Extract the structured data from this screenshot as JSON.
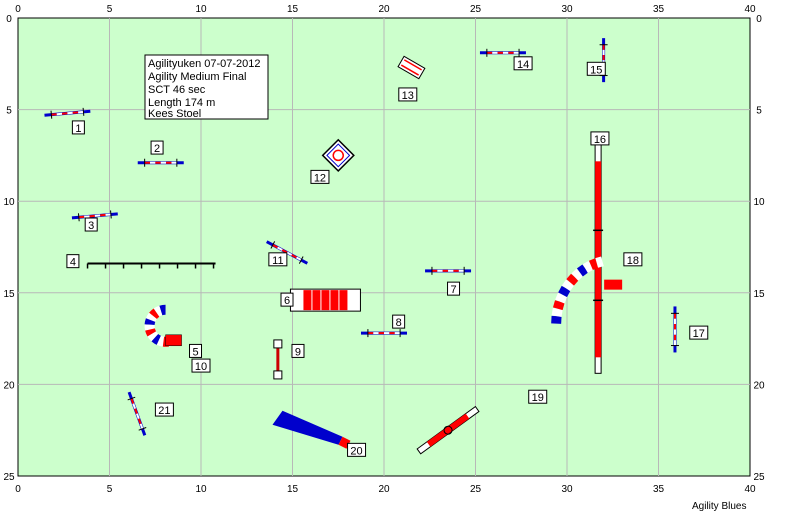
{
  "field": {
    "width_units": 40,
    "height_units": 25,
    "background": "#ccffcc",
    "grid_color": "#b8b8b8",
    "x_ticks": [
      "0",
      "5",
      "10",
      "15",
      "20",
      "25",
      "30",
      "35",
      "40"
    ],
    "y_ticks": [
      "0",
      "5",
      "10",
      "15",
      "20",
      "25"
    ]
  },
  "info": {
    "lines": [
      "Agilityuken 07-07-2012",
      "Agility Medium Final",
      "SCT 46 sec",
      "Length 174 m",
      "Kees Stoel"
    ]
  },
  "brand": "Agility Blues",
  "colors": {
    "red": "#ff0000",
    "blue": "#0000cc",
    "white": "#ffffff",
    "dark_red": "#cc0000"
  },
  "obstacles": [
    {
      "num": "1",
      "type": "jump",
      "x": 2.7,
      "y": 5.2,
      "angle": -5,
      "label_at": [
        3.3,
        6.0
      ]
    },
    {
      "num": "2",
      "type": "jump",
      "x": 7.8,
      "y": 7.9,
      "angle": 0,
      "label_at": [
        7.6,
        7.1
      ]
    },
    {
      "num": "3",
      "type": "jump",
      "x": 4.2,
      "y": 10.8,
      "angle": -5,
      "label_at": [
        4.0,
        11.3
      ]
    },
    {
      "num": "4",
      "type": "weave",
      "x": 3.8,
      "y": 13.4,
      "label_at": [
        3.0,
        13.3
      ]
    },
    {
      "num": "5",
      "type": "tunnel_c",
      "x": 8.5,
      "y": 16.8,
      "label_at": [
        9.7,
        18.2
      ]
    },
    {
      "num": "6",
      "type": "tunnel_straight",
      "x": 16.8,
      "y": 15.4,
      "label_at": [
        14.7,
        15.4
      ]
    },
    {
      "num": "7",
      "type": "jump",
      "x": 23.5,
      "y": 13.8,
      "angle": 0,
      "label_at": [
        23.8,
        14.8
      ]
    },
    {
      "num": "8",
      "type": "jump",
      "x": 20.0,
      "y": 17.2,
      "angle": 0,
      "label_at": [
        20.8,
        16.6
      ]
    },
    {
      "num": "9",
      "type": "tire",
      "x": 14.2,
      "y": 18.5,
      "label_at": [
        15.3,
        18.2
      ]
    },
    {
      "num": "10",
      "type": "label",
      "label_at": [
        10.0,
        19.0
      ]
    },
    {
      "num": "11",
      "type": "jump",
      "x": 14.7,
      "y": 12.8,
      "angle": 28,
      "label_at": [
        14.2,
        13.2
      ]
    },
    {
      "num": "12",
      "type": "table",
      "x": 17.5,
      "y": 7.5,
      "label_at": [
        16.5,
        8.7
      ]
    },
    {
      "num": "13",
      "type": "wall",
      "x": 21.5,
      "y": 2.7,
      "label_at": [
        21.3,
        4.2
      ]
    },
    {
      "num": "14",
      "type": "jump",
      "x": 26.5,
      "y": 1.9,
      "angle": 0,
      "label_at": [
        27.6,
        2.5
      ]
    },
    {
      "num": "15",
      "type": "jump",
      "x": 32.0,
      "y": 2.3,
      "angle": 90,
      "label_at": [
        31.6,
        2.8
      ]
    },
    {
      "num": "16",
      "type": "dogwalk",
      "x": 31.7,
      "y": 13.5,
      "label_at": [
        31.8,
        6.6
      ]
    },
    {
      "num": "17",
      "type": "jump",
      "x": 35.9,
      "y": 17.0,
      "angle": 90,
      "label_at": [
        37.2,
        17.2
      ]
    },
    {
      "num": "18",
      "type": "tunnel_curve",
      "x": 30.5,
      "y": 14.5,
      "label_at": [
        33.6,
        13.2
      ]
    },
    {
      "num": "19",
      "type": "seesaw",
      "x": 23.5,
      "y": 22.5,
      "label_at": [
        28.4,
        20.7
      ]
    },
    {
      "num": "20",
      "type": "chute",
      "x": 15.0,
      "y": 22.2,
      "label_at": [
        18.5,
        23.6
      ]
    },
    {
      "num": "21",
      "type": "jump",
      "x": 6.5,
      "y": 21.6,
      "angle": 70,
      "label_at": [
        8.0,
        21.4
      ]
    }
  ]
}
